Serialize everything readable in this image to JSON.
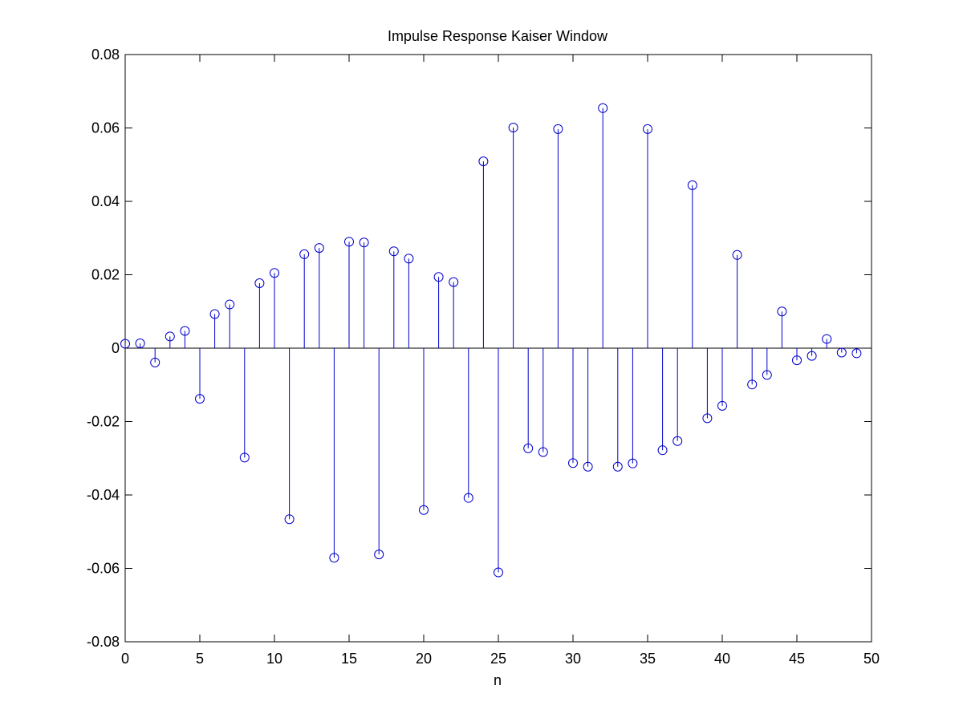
{
  "chart_data": {
    "type": "stem",
    "title": "Impulse Response Kaiser Window",
    "xlabel": "n",
    "ylabel": "",
    "xlim": [
      0,
      50
    ],
    "ylim": [
      -0.08,
      0.08
    ],
    "xticks": [
      0,
      5,
      10,
      15,
      20,
      25,
      30,
      35,
      40,
      45,
      50
    ],
    "xtick_labels": [
      "0",
      "5",
      "10",
      "15",
      "20",
      "25",
      "30",
      "35",
      "40",
      "45",
      "50"
    ],
    "yticks": [
      -0.08,
      -0.06,
      -0.04,
      -0.02,
      0,
      0.02,
      0.04,
      0.06,
      0.08
    ],
    "ytick_labels": [
      "-0.08",
      "-0.06",
      "-0.04",
      "-0.02",
      "0",
      "0.02",
      "0.04",
      "0.06",
      "0.08"
    ],
    "grid": false,
    "legend": "none",
    "color": "#0000cc",
    "x": [
      0,
      1,
      2,
      3,
      4,
      5,
      6,
      7,
      8,
      9,
      10,
      11,
      12,
      13,
      14,
      15,
      16,
      17,
      18,
      19,
      20,
      21,
      22,
      23,
      24,
      25,
      26,
      27,
      28,
      29,
      30,
      31,
      32,
      33,
      34,
      35,
      36,
      37,
      38,
      39,
      40,
      41,
      42,
      43,
      44,
      45,
      46,
      47,
      48,
      49
    ],
    "values": [
      0.0012,
      0.0013,
      -0.0039,
      0.0032,
      0.0047,
      -0.0138,
      0.0093,
      0.0119,
      -0.0298,
      0.0177,
      0.0205,
      -0.0466,
      0.0256,
      0.0273,
      -0.0571,
      0.029,
      0.0288,
      -0.0562,
      0.0264,
      0.0244,
      -0.0441,
      0.0194,
      0.018,
      -0.0408,
      0.0509,
      -0.0611,
      0.0601,
      -0.0273,
      -0.0283,
      0.0597,
      -0.0313,
      -0.0323,
      0.0654,
      -0.0323,
      -0.0314,
      0.0597,
      -0.0278,
      -0.0253,
      0.0444,
      -0.0191,
      -0.0157,
      0.0254,
      -0.0099,
      -0.0073,
      0.01,
      -0.0033,
      -0.0021,
      0.0025,
      -0.0012,
      -0.0014
    ]
  }
}
